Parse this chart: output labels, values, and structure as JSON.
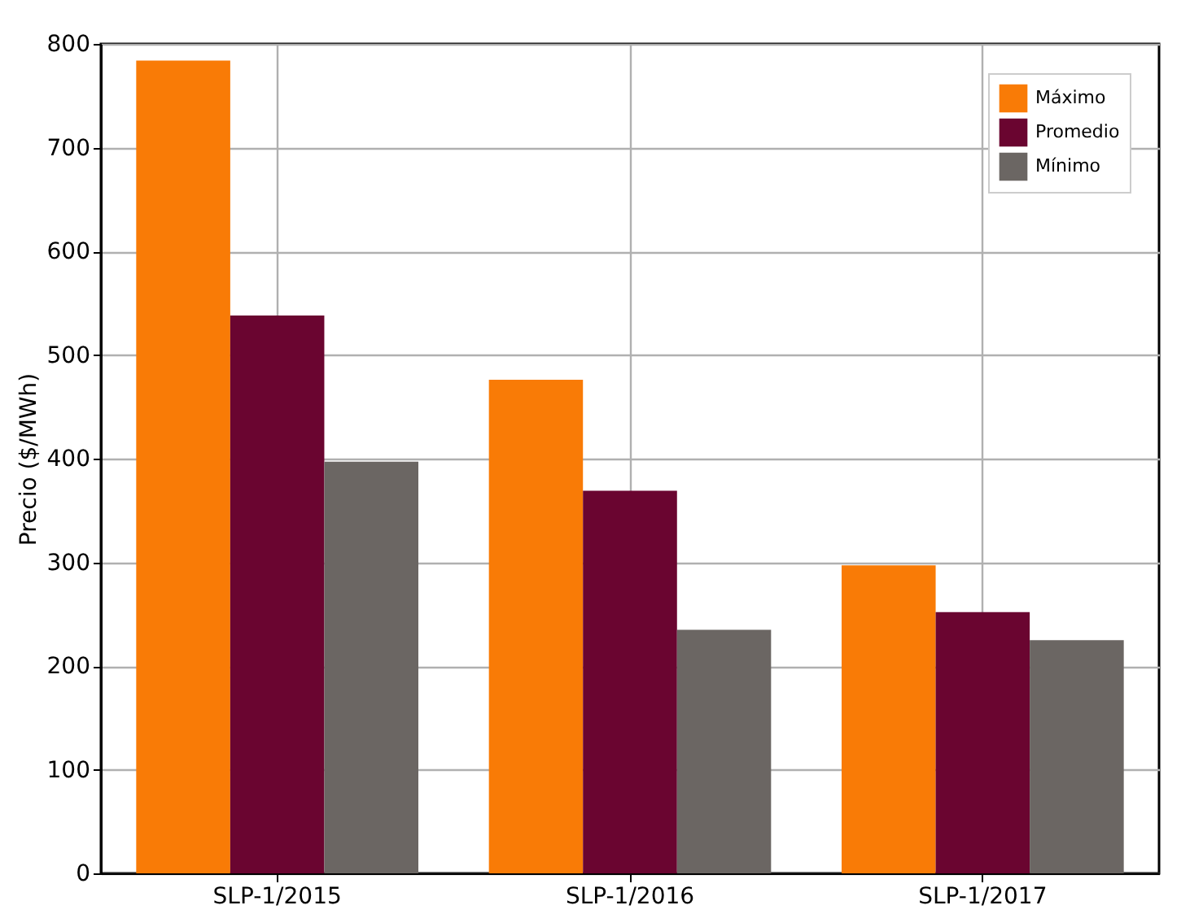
{
  "chart_data": {
    "type": "bar",
    "ylabel": "Precio ($/MWh)",
    "categories": [
      "SLP-1/2015",
      "SLP-1/2016",
      "SLP-1/2017"
    ],
    "series": [
      {
        "name": "Máximo",
        "color": "#f97b06",
        "values": [
          784,
          476,
          297
        ]
      },
      {
        "name": "Promedio",
        "color": "#6a0530",
        "values": [
          538,
          369,
          252
        ]
      },
      {
        "name": "Mínimo",
        "color": "#6b6663",
        "values": [
          397,
          235,
          225
        ]
      }
    ],
    "ylim": [
      0,
      800
    ],
    "yticks": [
      0,
      100,
      200,
      300,
      400,
      500,
      600,
      700,
      800
    ],
    "grid": true,
    "legend": "top right"
  }
}
